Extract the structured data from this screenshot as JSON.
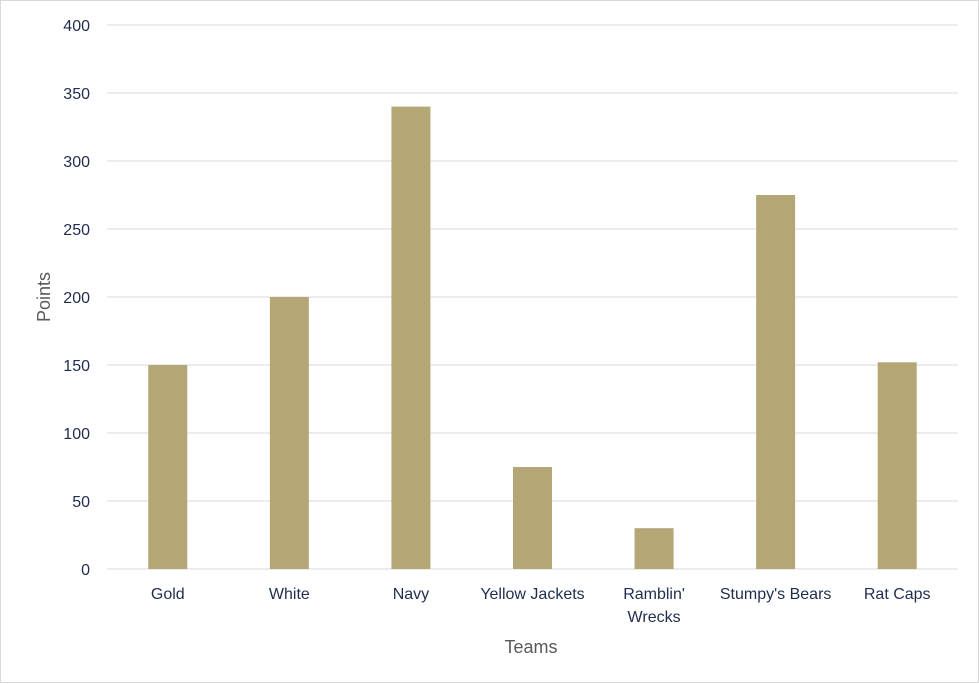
{
  "chart_data": {
    "type": "bar",
    "categories": [
      "Gold",
      "White",
      "Navy",
      "Yellow Jackets",
      "Ramblin' Wrecks",
      "Stumpy's Bears",
      "Rat Caps"
    ],
    "category_lines": [
      [
        "Gold"
      ],
      [
        "White"
      ],
      [
        "Navy"
      ],
      [
        "Yellow Jackets"
      ],
      [
        "Ramblin'",
        "Wrecks"
      ],
      [
        "Stumpy's Bears"
      ],
      [
        "Rat Caps"
      ]
    ],
    "values": [
      150,
      200,
      340,
      75,
      30,
      275,
      152
    ],
    "title": "",
    "xlabel": "Teams",
    "ylabel": "Points",
    "ylim": [
      0,
      400
    ],
    "yticks": [
      0,
      50,
      100,
      150,
      200,
      250,
      300,
      350,
      400
    ],
    "grid": true,
    "legend": "none",
    "colors": {
      "bar": "#b4a675",
      "grid": "#d9d9d9",
      "tick_text": "#1f2d4d",
      "axis_title": "#595959"
    }
  }
}
